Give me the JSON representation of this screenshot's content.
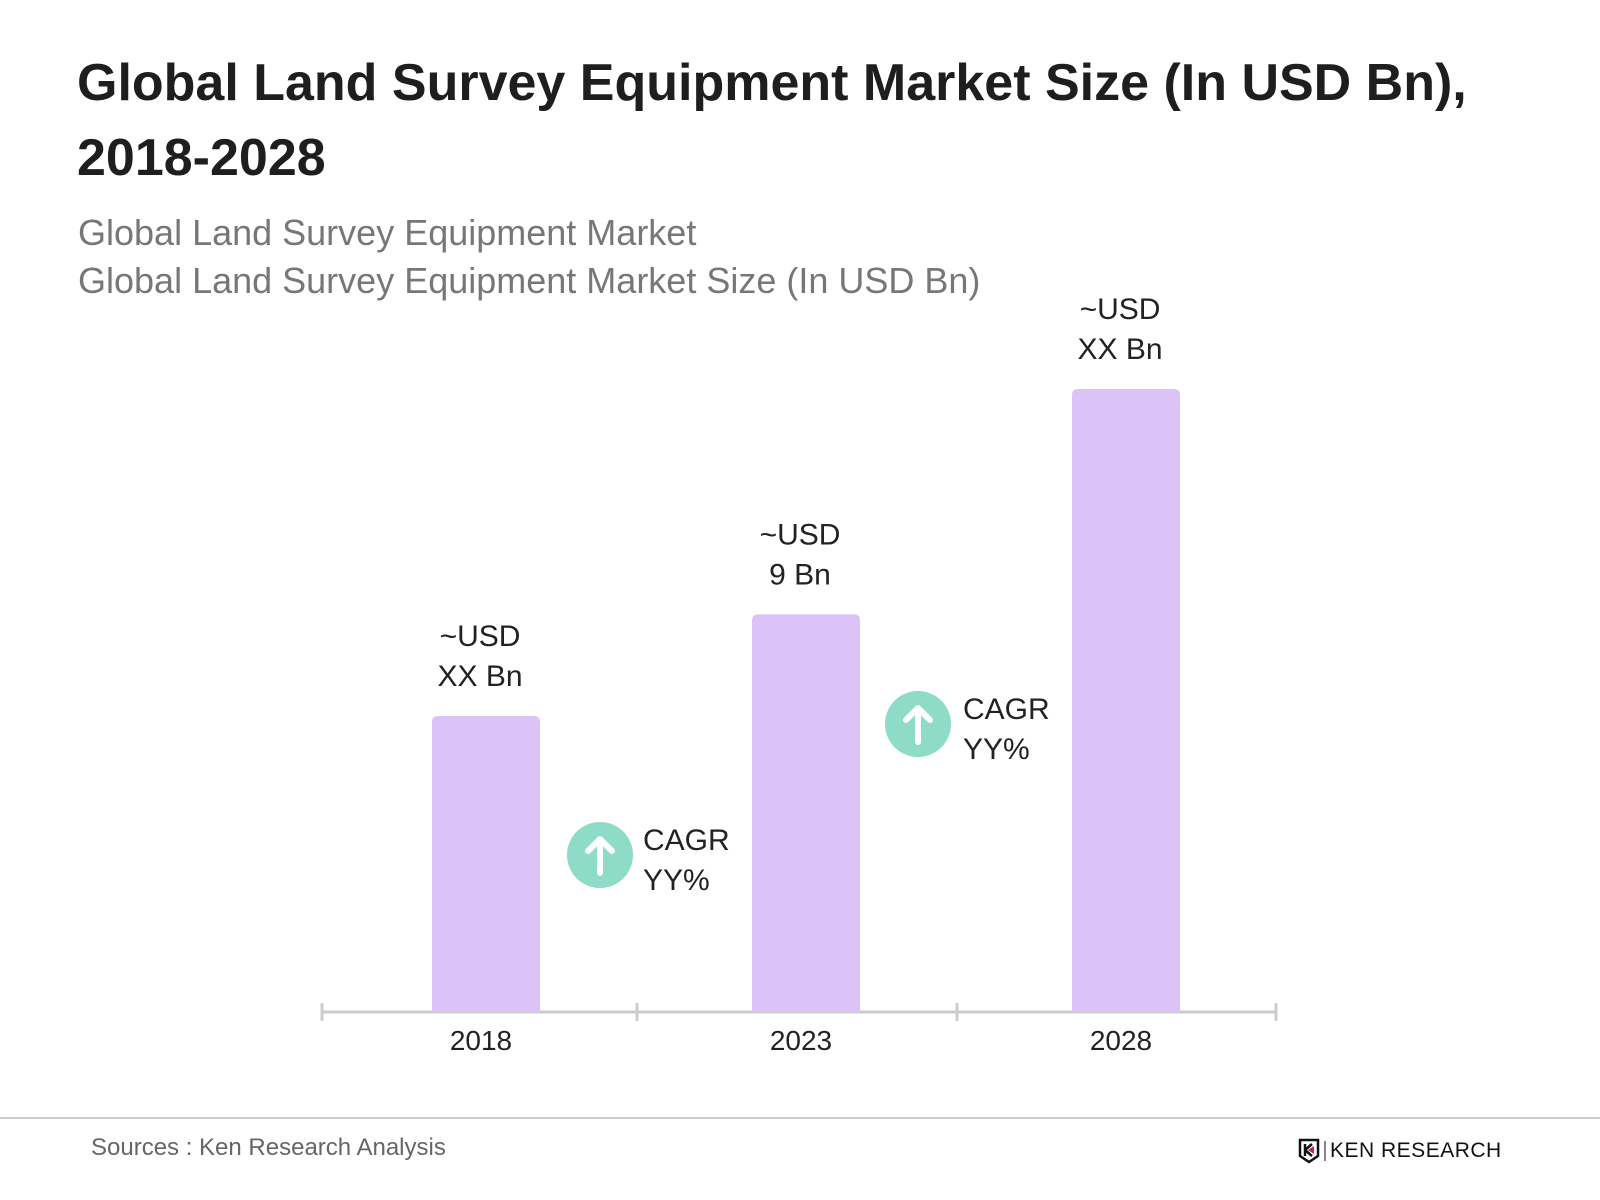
{
  "title": "Global Land Survey Equipment Market Size (In USD Bn), 2018-2028",
  "subtitle1": "Global Land Survey Equipment Market",
  "subtitle2": "Global Land Survey Equipment Market Size (In USD Bn)",
  "chart_data": {
    "type": "bar",
    "categories": [
      "2018",
      "2023",
      "2028"
    ],
    "values": [
      6.7,
      9,
      14.1
    ],
    "data_labels": [
      [
        "~USD",
        "XX Bn"
      ],
      [
        "~USD",
        "9 Bn"
      ],
      [
        "~USD",
        "XX Bn"
      ]
    ],
    "bar_color": "#dcc3f7",
    "annotations": [
      {
        "between": [
          "2018",
          "2023"
        ],
        "lines": [
          "CAGR",
          "YY%"
        ],
        "icon": "arrow-up-circle-icon",
        "color": "#8edcc6"
      },
      {
        "between": [
          "2023",
          "2028"
        ],
        "lines": [
          "CAGR",
          "YY%"
        ],
        "icon": "arrow-up-circle-icon",
        "color": "#8edcc6"
      }
    ],
    "grid": false,
    "ylim": [
      0,
      14.1
    ]
  },
  "footer": {
    "source": "Sources : Ken Research Analysis",
    "logo_text": "KEN RESEARCH"
  }
}
